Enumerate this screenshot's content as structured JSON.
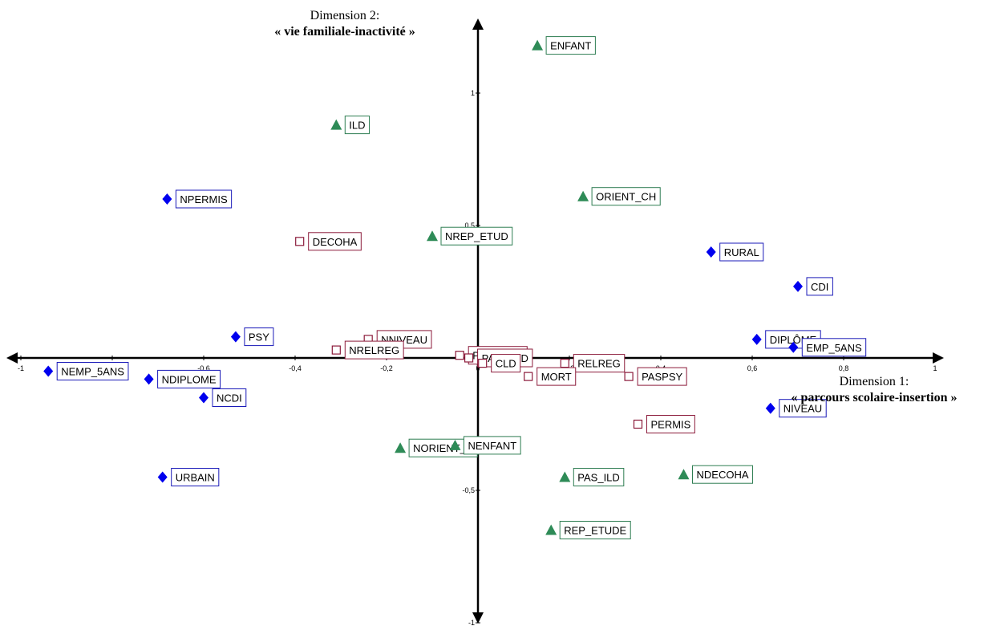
{
  "chart_data": {
    "type": "scatter",
    "x_axis": {
      "title_line1": "Dimension 1:",
      "title_line2": "« parcours scolaire-insertion »",
      "range": [
        -1,
        1
      ],
      "ticks": [
        -1,
        -0.8,
        -0.6,
        -0.4,
        -0.2,
        0,
        0.2,
        0.4,
        0.6,
        0.8,
        1
      ],
      "tick_labels": [
        "-1",
        "-0,8",
        "-0,6",
        "-0,4",
        "-0,2",
        "0",
        "0,2",
        "0,4",
        "0,6",
        "0,8",
        "1"
      ]
    },
    "y_axis": {
      "title_line1": "Dimension 2:",
      "title_line2": "« vie familiale-inactivité »",
      "range": [
        -1,
        1.1
      ],
      "ticks": [
        1,
        0.5,
        -0.5,
        -1
      ],
      "tick_labels": [
        "1",
        "0,5",
        "-0,5",
        "-1"
      ]
    },
    "grid": false,
    "series": [
      {
        "marker": "diamond",
        "color": "#0000ee",
        "box_color": "#1a1ab8",
        "points": [
          {
            "label": "NPERMIS",
            "x": -0.68,
            "y": 0.6
          },
          {
            "label": "PSY",
            "x": -0.53,
            "y": 0.08
          },
          {
            "label": "NEMP_5ANS",
            "x": -0.94,
            "y": -0.05
          },
          {
            "label": "NDIPLOME",
            "x": -0.72,
            "y": -0.08
          },
          {
            "label": "NCDI",
            "x": -0.6,
            "y": -0.15
          },
          {
            "label": "URBAIN",
            "x": -0.69,
            "y": -0.45
          },
          {
            "label": "RURAL",
            "x": 0.51,
            "y": 0.4
          },
          {
            "label": "CDI",
            "x": 0.7,
            "y": 0.27
          },
          {
            "label": "DIPLÔME",
            "x": 0.61,
            "y": 0.07
          },
          {
            "label": "EMP_5ANS",
            "x": 0.69,
            "y": 0.04
          },
          {
            "label": "NIVEAU",
            "x": 0.64,
            "y": -0.19
          }
        ]
      },
      {
        "marker": "triangle",
        "color": "#2e8b57",
        "box_color": "#2e7d52",
        "points": [
          {
            "label": "ENFANT",
            "x": 0.13,
            "y": 1.18
          },
          {
            "label": "ILD",
            "x": -0.31,
            "y": 0.88
          },
          {
            "label": "ORIENT_CH",
            "x": 0.23,
            "y": 0.61
          },
          {
            "label": "NREP_ETUD",
            "x": -0.1,
            "y": 0.46
          },
          {
            "label": "NORIENT_C",
            "x": -0.17,
            "y": -0.34
          },
          {
            "label": "NENFANT",
            "x": -0.05,
            "y": -0.33
          },
          {
            "label": "PAS_ILD",
            "x": 0.19,
            "y": -0.45
          },
          {
            "label": "NDECOHA",
            "x": 0.45,
            "y": -0.44
          },
          {
            "label": "REP_ETUDE",
            "x": 0.16,
            "y": -0.65
          }
        ]
      },
      {
        "marker": "square",
        "color": "#8b1a3a",
        "box_color": "#8b1a3a",
        "points": [
          {
            "label": "DECOHA",
            "x": -0.39,
            "y": 0.44
          },
          {
            "label": "NNIVEAU",
            "x": -0.24,
            "y": 0.07
          },
          {
            "label": "NRELREG",
            "x": -0.31,
            "y": 0.03
          },
          {
            "label": "PASMORT",
            "x": -0.04,
            "y": 0.01
          },
          {
            "label": "PAS_CLD",
            "x": -0.02,
            "y": 0
          },
          {
            "label": "CLD",
            "x": 0.01,
            "y": -0.02
          },
          {
            "label": "RELREG",
            "x": 0.19,
            "y": -0.02
          },
          {
            "label": "MORT",
            "x": 0.11,
            "y": -0.07
          },
          {
            "label": "PASPSY",
            "x": 0.33,
            "y": -0.07
          },
          {
            "label": "PERMIS",
            "x": 0.35,
            "y": -0.25
          }
        ]
      }
    ]
  }
}
